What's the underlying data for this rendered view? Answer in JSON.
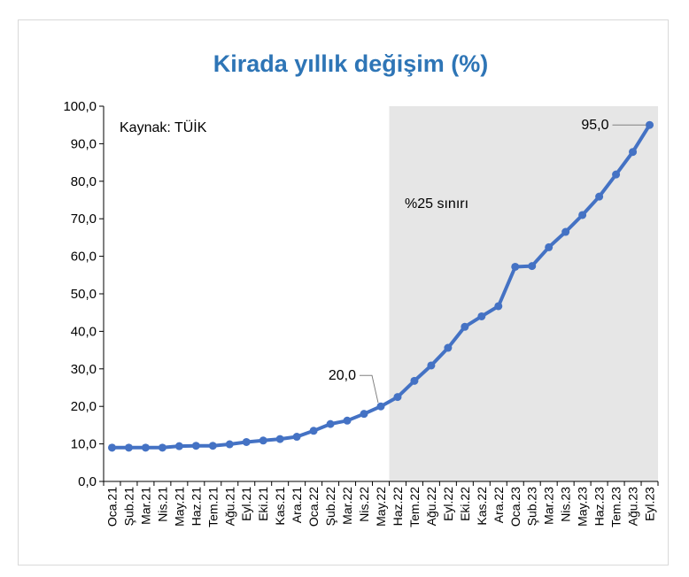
{
  "chart_data": {
    "type": "line",
    "title": "Kirada yıllık değişim (%)",
    "source_note": "Kaynak: TÜİK",
    "shaded_region_label": "%25 sınırı",
    "ylim": [
      0,
      100
    ],
    "yticks": [
      "0,0",
      "10,0",
      "20,0",
      "30,0",
      "40,0",
      "50,0",
      "60,0",
      "70,0",
      "80,0",
      "90,0",
      "100,0"
    ],
    "grid": false,
    "legend": "none",
    "x": [
      "Oca.21",
      "Şub.21",
      "Mar.21",
      "Nis.21",
      "May.21",
      "Haz.21",
      "Tem.21",
      "Ağu.21",
      "Eyl.21",
      "Eki.21",
      "Kas.21",
      "Ara.21",
      "Oca.22",
      "Şub.22",
      "Mar.22",
      "Nis.22",
      "May.22",
      "Haz.22",
      "Tem.22",
      "Ağu.22",
      "Eyl.22",
      "Eki.22",
      "Kas.22",
      "Ara.22",
      "Oca.23",
      "Şub.23",
      "Mar.23",
      "Nis.23",
      "May.23",
      "Haz.23",
      "Tem.23",
      "Ağu.23",
      "Eyl.23"
    ],
    "values": [
      9.0,
      9.0,
      9.0,
      9.0,
      9.4,
      9.5,
      9.5,
      9.9,
      10.5,
      10.9,
      11.3,
      11.9,
      13.5,
      15.3,
      16.2,
      18.0,
      20.0,
      22.5,
      26.8,
      30.9,
      35.6,
      41.2,
      44.0,
      46.7,
      57.2,
      57.4,
      62.4,
      66.5,
      71.0,
      75.9,
      81.8,
      87.8,
      95.0
    ],
    "annotations": [
      {
        "label": "20,0",
        "x": "May.22",
        "y": 20.0
      },
      {
        "label": "95,0",
        "x": "Eyl.23",
        "y": 95.0
      }
    ],
    "shaded_from": "Haz.22",
    "colors": {
      "line": "#4472c4",
      "title": "#2e75b6",
      "shade": "#e6e6e6"
    }
  }
}
